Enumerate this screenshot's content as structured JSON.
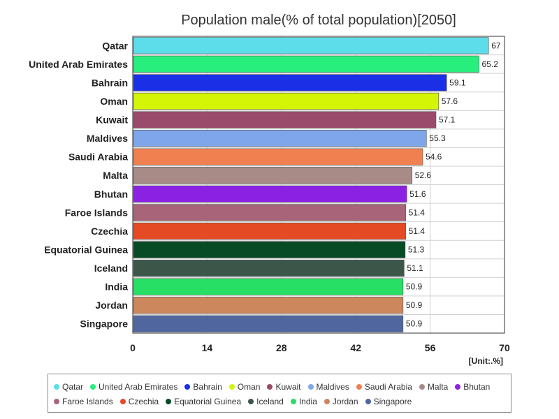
{
  "chart_data": {
    "type": "bar",
    "orientation": "horizontal",
    "title": "Population male(% of total population)[2050]",
    "unit_label": "[Unit:.%]",
    "xlim": [
      0,
      70
    ],
    "x_ticks": [
      "0",
      "14",
      "28",
      "42",
      "56",
      "70"
    ],
    "grid": true,
    "legend_position": "bottom",
    "categories": [
      "Qatar",
      "United Arab Emirates",
      "Bahrain",
      "Oman",
      "Kuwait",
      "Maldives",
      "Saudi Arabia",
      "Malta",
      "Bhutan",
      "Faroe Islands",
      "Czechia",
      "Equatorial Guinea",
      "Iceland",
      "India",
      "Jordan",
      "Singapore"
    ],
    "values": [
      67,
      65.2,
      59.1,
      57.6,
      57.1,
      55.3,
      54.6,
      52.6,
      51.6,
      51.4,
      51.4,
      51.3,
      51.1,
      50.9,
      50.9,
      50.9
    ],
    "value_labels": [
      "67",
      "65.2",
      "59.1",
      "57.6",
      "57.1",
      "55.3",
      "54.6",
      "52.6",
      "51.6",
      "51.4",
      "51.4",
      "51.3",
      "51.1",
      "50.9",
      "50.9",
      "50.9"
    ],
    "colors": [
      "#5ddde9",
      "#28ee7e",
      "#1a2fe6",
      "#d4f506",
      "#9a4a6a",
      "#7fa6ea",
      "#f08050",
      "#a88b86",
      "#8b22e3",
      "#a86478",
      "#e44a24",
      "#074a26",
      "#3c574a",
      "#28df66",
      "#cd875c",
      "#4f669f"
    ]
  }
}
